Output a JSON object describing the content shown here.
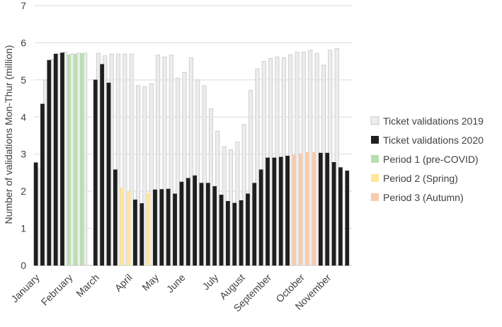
{
  "chart_data": {
    "type": "bar",
    "ylabel": "Number of validations Mon-Thur (million)",
    "ylim": [
      0,
      7
    ],
    "yticks": [
      0,
      1,
      2,
      3,
      4,
      5,
      6,
      7
    ],
    "grid": true,
    "legend_position": "right",
    "month_labels": [
      {
        "label": "January",
        "week": 1
      },
      {
        "label": "February",
        "week": 6
      },
      {
        "label": "March",
        "week": 10
      },
      {
        "label": "April",
        "week": 15
      },
      {
        "label": "May",
        "week": 19
      },
      {
        "label": "June",
        "week": 23
      },
      {
        "label": "July",
        "week": 28
      },
      {
        "label": "August",
        "week": 32
      },
      {
        "label": "September",
        "week": 36
      },
      {
        "label": "October",
        "week": 41
      },
      {
        "label": "November",
        "week": 45
      }
    ],
    "weeks": [
      1,
      2,
      3,
      4,
      5,
      6,
      7,
      8,
      9,
      10,
      11,
      12,
      13,
      14,
      15,
      16,
      17,
      18,
      19,
      20,
      21,
      22,
      23,
      24,
      25,
      26,
      27,
      28,
      29,
      30,
      31,
      32,
      33,
      34,
      35,
      36,
      37,
      38,
      39,
      40,
      41,
      42,
      43,
      44,
      45,
      46,
      47,
      48
    ],
    "series": [
      {
        "name": "Ticket validations 2019",
        "color": "#ececec",
        "values": [
          2.6,
          5.0,
          5.55,
          5.7,
          5.75,
          5.7,
          5.72,
          5.72,
          null,
          5.72,
          5.65,
          5.7,
          5.7,
          5.7,
          5.7,
          4.85,
          4.82,
          4.9,
          5.67,
          5.62,
          5.67,
          5.05,
          5.2,
          5.6,
          5.0,
          4.85,
          4.22,
          3.62,
          3.2,
          3.12,
          3.33,
          3.8,
          4.72,
          5.3,
          5.5,
          5.58,
          5.62,
          5.6,
          5.68,
          5.75,
          5.75,
          5.8,
          5.72,
          5.4,
          5.8,
          5.85,
          null,
          null
        ]
      },
      {
        "name": "Ticket validations 2020",
        "color": "#1f1f1f",
        "values": [
          2.77,
          4.35,
          5.53,
          5.7,
          5.73,
          null,
          null,
          null,
          null,
          5.0,
          5.42,
          4.92,
          2.58,
          null,
          null,
          1.77,
          1.67,
          null,
          2.04,
          2.05,
          2.06,
          1.93,
          2.25,
          2.35,
          2.42,
          2.22,
          2.22,
          2.13,
          1.9,
          1.73,
          1.68,
          1.75,
          1.93,
          2.22,
          2.58,
          2.9,
          2.9,
          2.92,
          2.95,
          null,
          null,
          null,
          null,
          3.03,
          3.03,
          2.78,
          2.64,
          2.55
        ]
      },
      {
        "name": "Period 1 (pre-COVID)",
        "color": "#b9dfb0",
        "values": [
          null,
          null,
          null,
          null,
          null,
          5.68,
          5.7,
          5.72,
          null,
          null,
          null,
          null,
          null,
          null,
          null,
          null,
          null,
          null,
          null,
          null,
          null,
          null,
          null,
          null,
          null,
          null,
          null,
          null,
          null,
          null,
          null,
          null,
          null,
          null,
          null,
          null,
          null,
          null,
          null,
          null,
          null,
          null,
          null,
          null,
          null,
          null,
          null,
          null
        ]
      },
      {
        "name": "Period 2 (Spring)",
        "color": "#ffe699",
        "values": [
          null,
          null,
          null,
          null,
          null,
          null,
          null,
          null,
          null,
          null,
          null,
          null,
          null,
          2.1,
          2.0,
          null,
          null,
          1.95,
          null,
          null,
          null,
          null,
          null,
          null,
          null,
          null,
          null,
          null,
          null,
          null,
          null,
          null,
          null,
          null,
          null,
          null,
          null,
          null,
          null,
          2.98,
          3.02,
          3.05,
          3.05,
          null,
          null,
          null,
          null,
          null
        ]
      },
      {
        "name": "Period 3 (Autumn)",
        "color": "#f8cbad",
        "values": []
      }
    ]
  }
}
